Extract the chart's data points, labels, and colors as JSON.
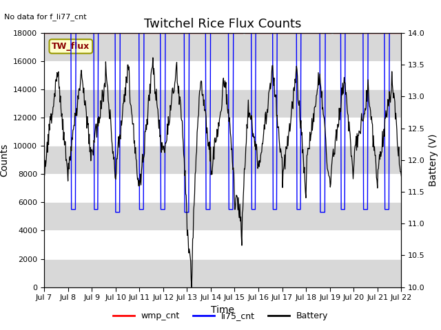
{
  "title": "Twitchel Rice Flux Counts",
  "no_data_text": "No data for f_li77_cnt",
  "xlabel": "Time",
  "ylabel_left": "Counts",
  "ylabel_right": "Battery (V)",
  "ylim_left": [
    0,
    18000
  ],
  "ylim_right": [
    10.0,
    14.0
  ],
  "yticks_left": [
    0,
    2000,
    4000,
    6000,
    8000,
    10000,
    12000,
    14000,
    16000,
    18000
  ],
  "yticks_right": [
    10.0,
    10.5,
    11.0,
    11.5,
    12.0,
    12.5,
    13.0,
    13.5,
    14.0
  ],
  "xtick_labels": [
    "Jul 7",
    "Jul 8",
    "Jul 9",
    "Jul 10",
    "Jul 11",
    "Jul 12",
    "Jul 13",
    "Jul 14",
    "Jul 15",
    "Jul 16",
    "Jul 17",
    "Jul 18",
    "Jul 19",
    "Jul 20",
    "Jul 21",
    "Jul 22"
  ],
  "legend_box_label": "TW_flux",
  "legend_box_color": "#ffffcc",
  "legend_box_edge": "#999900",
  "wmp_color": "red",
  "li75_color": "blue",
  "battery_color": "black",
  "band_color": "#d8d8d8",
  "plot_bg_color": "white",
  "title_fontsize": 13,
  "axis_label_fontsize": 10,
  "tick_fontsize": 8
}
